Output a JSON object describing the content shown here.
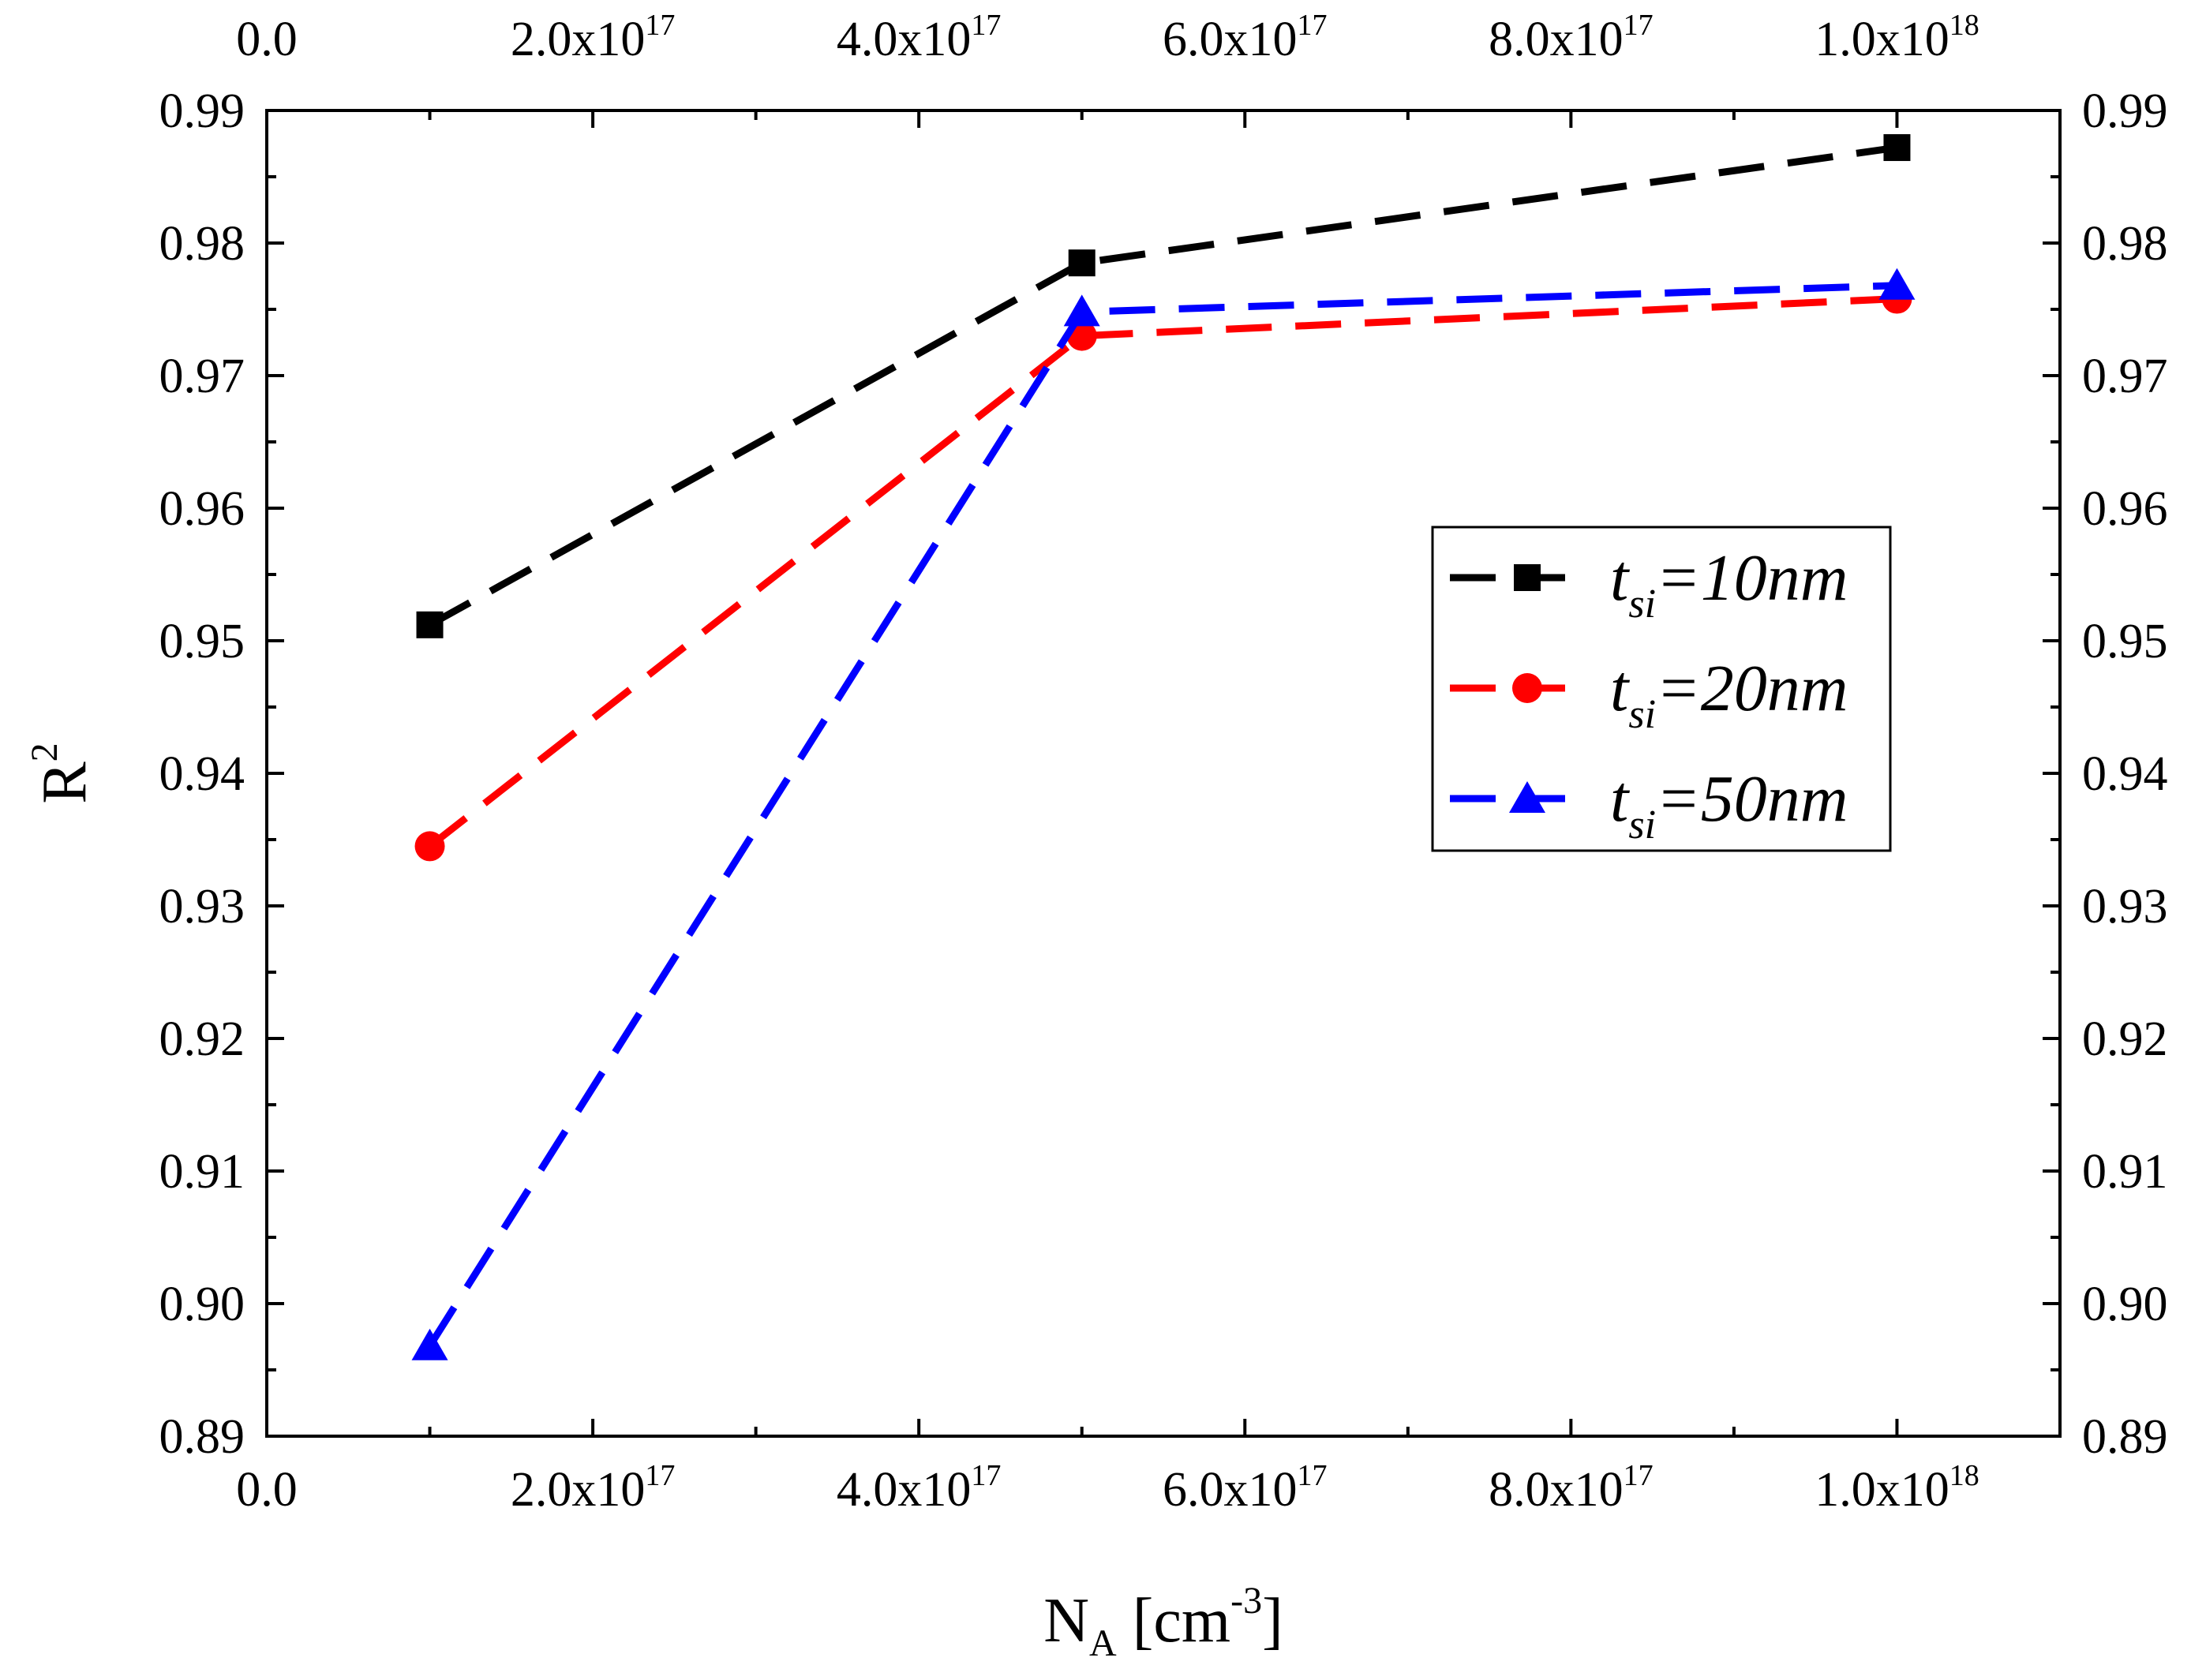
{
  "chart_data": {
    "type": "line",
    "title": "",
    "xlabel": {
      "main": "N",
      "sub": "A",
      "open": " [cm",
      "sup": "-3",
      "close": "]"
    },
    "ylabel": {
      "main": "R",
      "sup": "2"
    },
    "xlim": [
      0,
      1.1e+18
    ],
    "ylim": [
      0.89,
      0.99
    ],
    "x": [
      1e+17,
      5e+17,
      1e+18
    ],
    "series": [
      {
        "name": "t_si=10nm",
        "label_main": "t",
        "label_sub": "si",
        "label_rest": "=10nm",
        "color": "#000000",
        "marker": "square",
        "values": [
          0.9512,
          0.9785,
          0.9872
        ]
      },
      {
        "name": "t_si=20nm",
        "label_main": "t",
        "label_sub": "si",
        "label_rest": "=20nm",
        "color": "#ff0000",
        "marker": "circle",
        "values": [
          0.9345,
          0.973,
          0.9758
        ]
      },
      {
        "name": "t_si=50nm",
        "label_main": "t",
        "label_sub": "si",
        "label_rest": "=50nm",
        "color": "#0000ff",
        "marker": "triangle",
        "values": [
          0.8968,
          0.9748,
          0.9768
        ]
      }
    ],
    "x_ticks": [
      {
        "value": 0,
        "mantissa": "0.0",
        "exp": ""
      },
      {
        "value": 2e+17,
        "mantissa": "2.0x10",
        "exp": "17"
      },
      {
        "value": 4e+17,
        "mantissa": "4.0x10",
        "exp": "17"
      },
      {
        "value": 6e+17,
        "mantissa": "6.0x10",
        "exp": "17"
      },
      {
        "value": 8e+17,
        "mantissa": "8.0x10",
        "exp": "17"
      },
      {
        "value": 1e+18,
        "mantissa": "1.0x10",
        "exp": "18"
      }
    ],
    "x_minor_ticks": [
      1e+17,
      3e+17,
      5e+17,
      7e+17,
      9e+17
    ],
    "y_ticks": [
      {
        "value": 0.89,
        "label": "0.89"
      },
      {
        "value": 0.9,
        "label": "0.90"
      },
      {
        "value": 0.91,
        "label": "0.91"
      },
      {
        "value": 0.92,
        "label": "0.92"
      },
      {
        "value": 0.93,
        "label": "0.93"
      },
      {
        "value": 0.94,
        "label": "0.94"
      },
      {
        "value": 0.95,
        "label": "0.95"
      },
      {
        "value": 0.96,
        "label": "0.96"
      },
      {
        "value": 0.97,
        "label": "0.97"
      },
      {
        "value": 0.98,
        "label": "0.98"
      },
      {
        "value": 0.99,
        "label": "0.99"
      }
    ],
    "mirrored_axes": true,
    "grid": false,
    "legend_position": "right-middle",
    "line_style": "dashed"
  }
}
